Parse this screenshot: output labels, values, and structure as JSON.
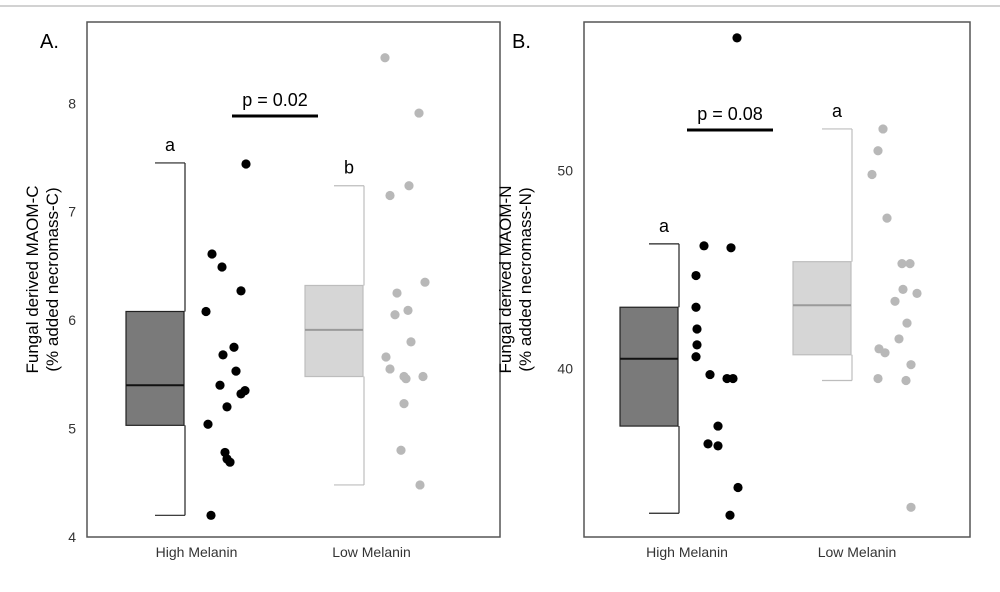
{
  "chart_data": [
    {
      "type": "boxplot-jitter",
      "panel_label": "A.",
      "ylabel_line1": "Fungal derived MAOM-C",
      "ylabel_line2": "(% added necromass-C)",
      "ylim": [
        4,
        8.75
      ],
      "yticks": [
        4,
        5,
        6,
        7,
        8
      ],
      "categories": [
        "High Melanin",
        "Low Melanin"
      ],
      "boxes": [
        {
          "category": "High Melanin",
          "fill": "#7a7a7a",
          "line": "#222222",
          "min": 4.2,
          "q1": 5.03,
          "median": 5.4,
          "q3": 6.08,
          "max": 7.45,
          "letter": "a"
        },
        {
          "category": "Low Melanin",
          "fill": "#d6d6d6",
          "line": "#bdbdbd",
          "min": 4.48,
          "q1": 5.48,
          "median": 5.91,
          "q3": 6.32,
          "max": 7.24,
          "letter": "b"
        }
      ],
      "points": [
        {
          "category": "High Melanin",
          "color": "#000000",
          "values": [
            7.44,
            6.61,
            6.49,
            6.27,
            6.08,
            5.75,
            5.68,
            5.53,
            5.4,
            5.35,
            5.32,
            5.2,
            5.04,
            4.78,
            4.72,
            4.69,
            4.2
          ]
        },
        {
          "category": "Low Melanin",
          "color": "#b8b8b8",
          "values": [
            8.42,
            7.91,
            7.24,
            7.15,
            6.35,
            6.25,
            6.09,
            6.05,
            5.8,
            5.66,
            5.55,
            5.48,
            5.48,
            5.46,
            5.23,
            4.8,
            4.48
          ]
        }
      ],
      "significance": {
        "label": "p = 0.02"
      }
    },
    {
      "type": "boxplot-jitter",
      "panel_label": "B.",
      "ylabel_line1": "Fungal derived MAOM-N",
      "ylabel_line2": "(% added necromass-N)",
      "ylim": [
        31.5,
        57.5
      ],
      "yticks": [
        40,
        50
      ],
      "categories": [
        "High Melanin",
        "Low Melanin"
      ],
      "boxes": [
        {
          "category": "High Melanin",
          "fill": "#7a7a7a",
          "line": "#222222",
          "min": 32.7,
          "q1": 37.1,
          "median": 40.5,
          "q3": 43.1,
          "max": 46.3,
          "letter": "a"
        },
        {
          "category": "Low Melanin",
          "fill": "#d6d6d6",
          "line": "#bdbdbd",
          "min": 39.4,
          "q1": 40.7,
          "median": 43.2,
          "q3": 45.4,
          "max": 52.1,
          "letter": "a"
        }
      ],
      "points": [
        {
          "category": "High Melanin",
          "color": "#000000",
          "values": [
            56.7,
            46.2,
            46.1,
            44.7,
            43.1,
            42.0,
            41.2,
            40.6,
            39.7,
            39.5,
            39.5,
            37.1,
            36.2,
            36.1,
            34.0,
            32.6
          ]
        },
        {
          "category": "Low Melanin",
          "color": "#b8b8b8",
          "values": [
            52.1,
            51.0,
            49.8,
            47.6,
            45.3,
            45.3,
            44.0,
            43.8,
            43.4,
            42.3,
            41.5,
            41.0,
            40.8,
            40.2,
            39.5,
            39.4,
            33.0
          ]
        }
      ],
      "significance": {
        "label": "p = 0.08"
      }
    }
  ]
}
